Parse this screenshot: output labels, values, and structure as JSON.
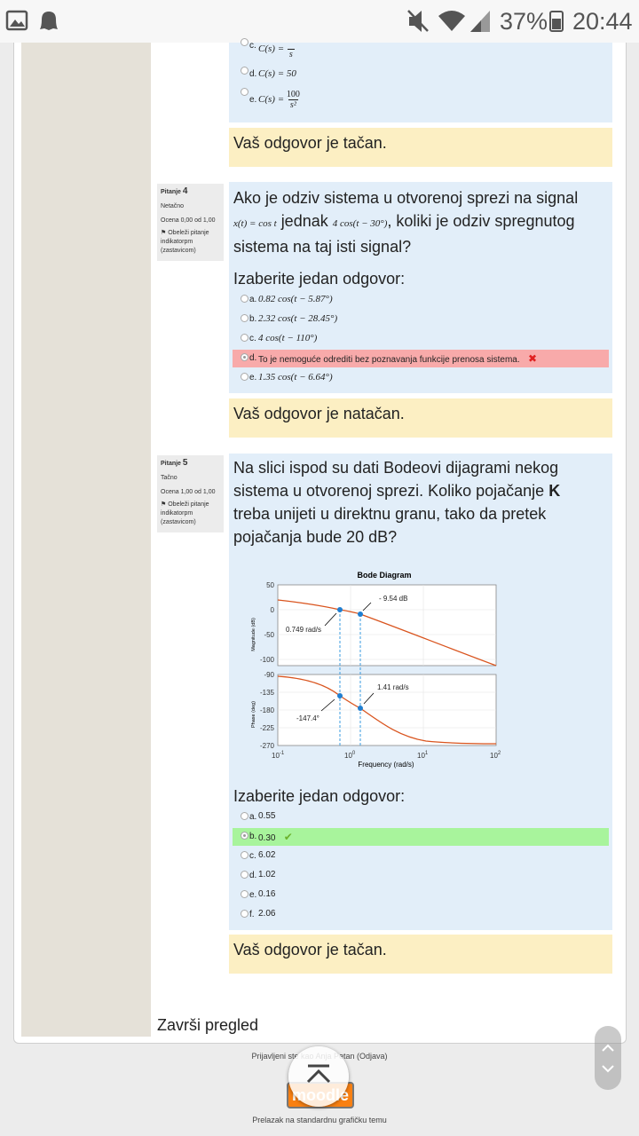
{
  "status_bar": {
    "battery": "37%",
    "time": "20:44"
  },
  "question_3": {
    "options": [
      {
        "label": "c.",
        "lhs": "C(s) =",
        "denominator": "s"
      },
      {
        "label": "d.",
        "formula": "C(s) = 50"
      },
      {
        "label": "e.",
        "lhs": "C(s) =",
        "numerator": "100",
        "denominator": "s²"
      }
    ],
    "feedback": "Vaš odgovor je tačan."
  },
  "question_4": {
    "heading": "Pitanje",
    "number": "4",
    "state": "Netačno",
    "grade": "Ocena 0,00 od 1,00",
    "flag": "Obeleži pitanje indikatorpm (zastavicom)",
    "text": {
      "line1": "Ako je odziv sistema u otvorenoj sprezi na signal",
      "input": "x(t) = cos t",
      "middle": "jednak",
      "response": "4 cos(t − 30°)",
      "rest": "koliki je odziv spregnutog",
      "line3": "sistema na taj isti signal?"
    },
    "prompt": "Izaberite jedan odgovor:",
    "options": [
      {
        "label": "a.",
        "text": "0.82 cos(t − 5.87°)"
      },
      {
        "label": "b.",
        "text": "2.32 cos(t − 28.45°)"
      },
      {
        "label": "c.",
        "text": "4 cos(t − 110°)"
      },
      {
        "label": "d.",
        "text": "To je nemoguće odrediti bez poznavanja funkcije prenosa sistema.",
        "selected": true,
        "correct": false
      },
      {
        "label": "e.",
        "text": "1.35 cos(t − 6.64°)"
      }
    ],
    "feedback": "Vaš odgovor je natačan."
  },
  "question_5": {
    "heading": "Pitanje",
    "number": "5",
    "state": "Tačno",
    "grade": "Ocena 1,00 od 1,00",
    "flag": "Obeleži pitanje indikatorpm (zastavicom)",
    "text": {
      "before": "Na slici ispod su dati Bodeovi dijagrami nekog sistema u otvorenoj sprezi. Koliko pojačanje",
      "bold": "K",
      "after": "treba unijeti u direktnu granu, tako da pretek pojačanja bude 20 dB?"
    },
    "bode": {
      "title": "Bode Diagram",
      "magnitude_label": "Magnitude (dB)",
      "phase_label": "Phase (deg)",
      "x_label": "Frequency (rad/s)",
      "magnitude_ticks": [
        "50",
        "0",
        "-50",
        "-100"
      ],
      "phase_ticks": [
        "-90",
        "-135",
        "-180",
        "-225",
        "-270"
      ],
      "x_ticks": [
        {
          "base": "10",
          "exponent": "-1"
        },
        {
          "base": "10",
          "exponent": "0"
        },
        {
          "base": "10",
          "exponent": "1"
        },
        {
          "base": "10",
          "exponent": "2"
        }
      ],
      "annotations": {
        "gain_margin": "- 9.54 dB",
        "crossover_frequency": "0.749 rad/s",
        "phase_crossover_frequency": "1.41 rad/s",
        "phase_at_crossover": "-147.4°"
      }
    },
    "prompt": "Izaberite jedan odgovor:",
    "options": [
      {
        "label": "a.",
        "text": "0.55"
      },
      {
        "label": "b.",
        "text": "0.30",
        "selected": true,
        "correct": true
      },
      {
        "label": "c.",
        "text": "6.02"
      },
      {
        "label": "d.",
        "text": "1.02"
      },
      {
        "label": "e.",
        "text": "0.16"
      },
      {
        "label": "f.",
        "text": "2.06"
      }
    ],
    "feedback": "Vaš odgovor je tačan."
  },
  "footer": {
    "finish_review": "Završi pregled",
    "logged_in": "Prijavljeni ste kao Anja Petan (Odjava)",
    "logo": "moodle",
    "theme_link": "Prelazak na standardnu grafičku temu"
  }
}
